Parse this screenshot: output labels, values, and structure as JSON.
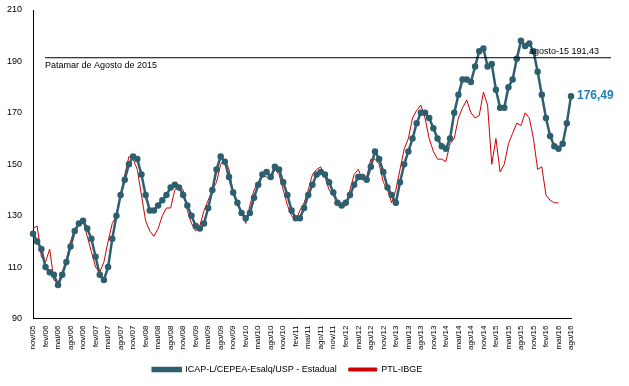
{
  "chart_data": {
    "type": "line",
    "categories": [
      "nov/05",
      null,
      null,
      "fev/06",
      null,
      null,
      "mai/06",
      null,
      null,
      "ago/06",
      null,
      null,
      "nov/06",
      null,
      null,
      "fev/07",
      null,
      null,
      "mai/07",
      null,
      null,
      "ago/07",
      null,
      null,
      "nov/07",
      null,
      null,
      "fev/08",
      null,
      null,
      "mai/08",
      null,
      null,
      "ago/08",
      null,
      null,
      "nov/08",
      null,
      null,
      "fev/09",
      null,
      null,
      "mai/09",
      null,
      null,
      "ago/09",
      null,
      null,
      "nov/09",
      null,
      null,
      "fev/10",
      null,
      null,
      "mai/10",
      null,
      null,
      "ago/10",
      null,
      null,
      "nov/10",
      null,
      null,
      "fev/11",
      null,
      null,
      "mai/11",
      null,
      null,
      "ago/11",
      null,
      null,
      "nov/11",
      null,
      null,
      "fev/12",
      null,
      null,
      "mai/12",
      null,
      null,
      "ago/12",
      null,
      null,
      "nov/12",
      null,
      null,
      "fev/13",
      null,
      null,
      "mai/13",
      null,
      null,
      "ago/13",
      null,
      null,
      "nov/13",
      null,
      null,
      "fev/14",
      null,
      null,
      "mai/14",
      null,
      null,
      "ago/14",
      null,
      null,
      "nov/14",
      null,
      null,
      "fev/15",
      null,
      null,
      "mai/15",
      null,
      null,
      "ago/15",
      null,
      null,
      "nov/15",
      null,
      null,
      "fev/16",
      null,
      null,
      "mai/16",
      null,
      null,
      "ago/16"
    ],
    "series": [
      {
        "name": "ICAP-L/CEPEA-Esalq/USP - Estadual",
        "color": "#2e5f6e",
        "marker": "circle",
        "line_style": "solid",
        "values": [
          123,
          120,
          117,
          110,
          108,
          107,
          103,
          107,
          112,
          118,
          124,
          127,
          128,
          125,
          121,
          114,
          107,
          105,
          110,
          121,
          130,
          138,
          144,
          150,
          153,
          152,
          146,
          138,
          132,
          132,
          134,
          136,
          138,
          141,
          142,
          141,
          138,
          134,
          130,
          126,
          125,
          127,
          133,
          140,
          148,
          153,
          151,
          145,
          139,
          135,
          131,
          129,
          131,
          137,
          142,
          146,
          147,
          145,
          149,
          148,
          143,
          138,
          132,
          129,
          129,
          133,
          138,
          142,
          146,
          147,
          146,
          143,
          139,
          135,
          134,
          135,
          138,
          142,
          145,
          145,
          144,
          149,
          155,
          152,
          147,
          141,
          138,
          135,
          143,
          150,
          155,
          160,
          166,
          170,
          170,
          168,
          164,
          160,
          157,
          156,
          160,
          170,
          177,
          183,
          183,
          182,
          188,
          194,
          195,
          188,
          189,
          179,
          172,
          172,
          180,
          183,
          191,
          198,
          196,
          197,
          194,
          186,
          177,
          168,
          161,
          157,
          156,
          158,
          166,
          176.49
        ]
      },
      {
        "name": "PTL-IBGE",
        "color": "#cc0000",
        "marker": "none",
        "line_style": "solid",
        "values": [
          125,
          126,
          114,
          112,
          117,
          105,
          104,
          108,
          113,
          120,
          125,
          127,
          128,
          122,
          116,
          110,
          108,
          112,
          120,
          127,
          130,
          138,
          146,
          153,
          152,
          148,
          138,
          128,
          124,
          122,
          125,
          130,
          133,
          133,
          140,
          142,
          140,
          132,
          127,
          124,
          126,
          132,
          136,
          140,
          143,
          150,
          152,
          148,
          139,
          134,
          132,
          127,
          134,
          140,
          143,
          146,
          145,
          144,
          148,
          146,
          140,
          134,
          130,
          128,
          132,
          135,
          140,
          146,
          148,
          149,
          145,
          140,
          138,
          135,
          133,
          134,
          140,
          146,
          148,
          144,
          145,
          152,
          152,
          150,
          143,
          140,
          135,
          140,
          148,
          156,
          160,
          168,
          171,
          173,
          168,
          160,
          155,
          152,
          152,
          151,
          158,
          160,
          168,
          172,
          175,
          170,
          168,
          169,
          178,
          173,
          150,
          160,
          147,
          150,
          158,
          162,
          166,
          165,
          170,
          168,
          160,
          148,
          149,
          138,
          136,
          135,
          135,
          null,
          null,
          null
        ]
      }
    ],
    "ylim": [
      90,
      210
    ],
    "yticks": [
      90,
      110,
      130,
      150,
      170,
      190,
      210
    ],
    "grid": false,
    "legend": "bottom",
    "reference_line": {
      "value": 191.43,
      "label": "agosto-15 191,43",
      "text": "Patamar de Agosto de 2015"
    },
    "end_label": {
      "value": 176.49,
      "label": "176,49"
    }
  }
}
